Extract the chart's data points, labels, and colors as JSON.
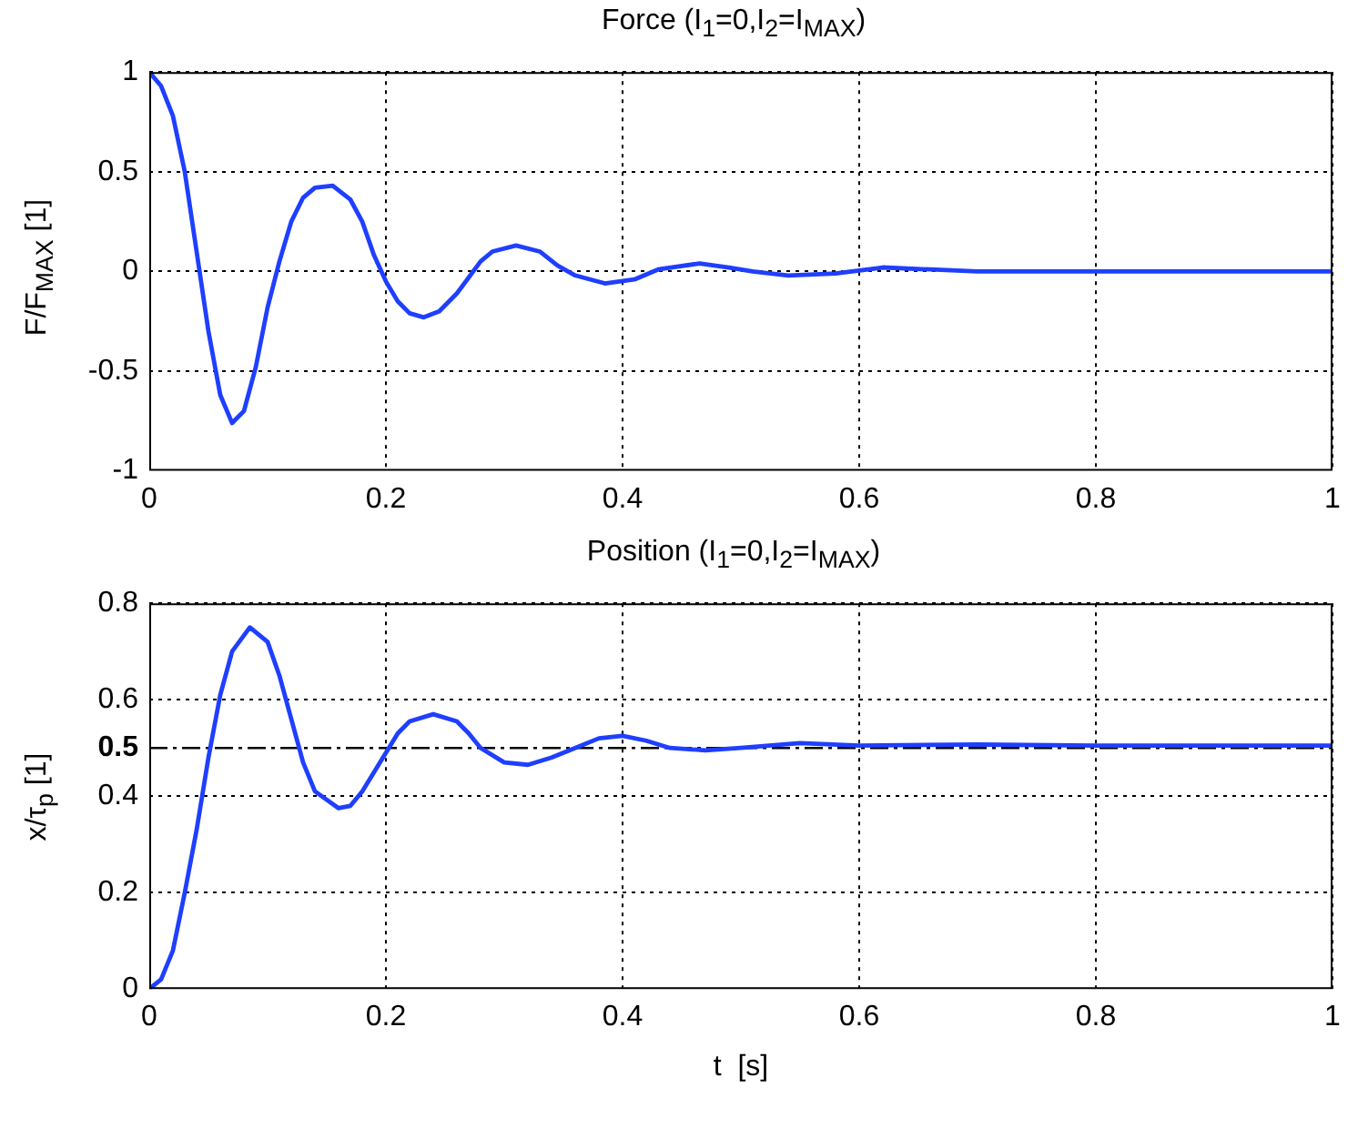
{
  "chart_data": [
    {
      "type": "line",
      "title": "Force (I$_{1}$=0,I$_{2}$=I$_{MAX}$)",
      "ylabel": "F/F$_{MAX}$  [1]",
      "xlim": [
        0,
        1
      ],
      "xticks": [
        0,
        0.2,
        0.4,
        0.6,
        0.8,
        1
      ],
      "ylim": [
        -1,
        1
      ],
      "yticks": [
        -1,
        -0.5,
        0,
        0.5,
        1
      ],
      "grid": true,
      "legend": false,
      "marker": "none",
      "line_style": "solid",
      "series": [
        {
          "color": "#1f3fff",
          "x": [
            0,
            0.01,
            0.02,
            0.03,
            0.04,
            0.05,
            0.06,
            0.07,
            0.08,
            0.09,
            0.1,
            0.11,
            0.12,
            0.13,
            0.14,
            0.155,
            0.17,
            0.18,
            0.19,
            0.2,
            0.21,
            0.22,
            0.232,
            0.245,
            0.26,
            0.27,
            0.28,
            0.29,
            0.31,
            0.33,
            0.345,
            0.36,
            0.385,
            0.41,
            0.43,
            0.465,
            0.49,
            0.51,
            0.54,
            0.58,
            0.62,
            0.66,
            0.7,
            0.8,
            0.9,
            1
          ],
          "values": [
            1,
            0.93,
            0.78,
            0.5,
            0.1,
            -0.3,
            -0.62,
            -0.76,
            -0.7,
            -0.48,
            -0.18,
            0.05,
            0.25,
            0.37,
            0.42,
            0.43,
            0.36,
            0.25,
            0.08,
            -0.05,
            -0.15,
            -0.21,
            -0.23,
            -0.2,
            -0.11,
            -0.03,
            0.05,
            0.1,
            0.13,
            0.1,
            0.03,
            -0.02,
            -0.06,
            -0.04,
            0.01,
            0.04,
            0.02,
            0,
            -0.02,
            -0.01,
            0.02,
            0.01,
            0,
            0,
            0,
            0
          ]
        }
      ]
    },
    {
      "type": "line",
      "title": "Position (I$_{1}$=0,I$_{2}$=I$_{MAX}$)",
      "xlabel": "t  [s]",
      "ylabel": "x/τ$_{p}$  [1]",
      "xlim": [
        0,
        1
      ],
      "xticks": [
        0,
        0.2,
        0.4,
        0.6,
        0.8,
        1
      ],
      "ylim": [
        0,
        0.8
      ],
      "yticks": [
        0,
        0.2,
        0.4,
        0.5,
        0.6,
        0.8
      ],
      "grid": true,
      "legend": false,
      "marker": "none",
      "line_style": "solid",
      "ref_lines": [
        {
          "axis": "y",
          "value": 0.5,
          "line_style": "dashdot",
          "color": "#000000"
        }
      ],
      "series": [
        {
          "color": "#1f3fff",
          "x": [
            0,
            0.01,
            0.02,
            0.03,
            0.04,
            0.05,
            0.06,
            0.07,
            0.085,
            0.1,
            0.11,
            0.12,
            0.13,
            0.14,
            0.16,
            0.17,
            0.18,
            0.19,
            0.2,
            0.21,
            0.22,
            0.24,
            0.26,
            0.27,
            0.28,
            0.3,
            0.32,
            0.34,
            0.36,
            0.38,
            0.4,
            0.42,
            0.44,
            0.47,
            0.5,
            0.55,
            0.6,
            0.7,
            0.8,
            1
          ],
          "values": [
            0,
            0.02,
            0.08,
            0.2,
            0.33,
            0.48,
            0.61,
            0.7,
            0.75,
            0.72,
            0.65,
            0.56,
            0.47,
            0.41,
            0.375,
            0.38,
            0.41,
            0.45,
            0.49,
            0.53,
            0.555,
            0.57,
            0.555,
            0.53,
            0.5,
            0.47,
            0.465,
            0.48,
            0.5,
            0.52,
            0.525,
            0.515,
            0.5,
            0.495,
            0.5,
            0.51,
            0.505,
            0.507,
            0.505,
            0.505
          ]
        }
      ]
    }
  ]
}
